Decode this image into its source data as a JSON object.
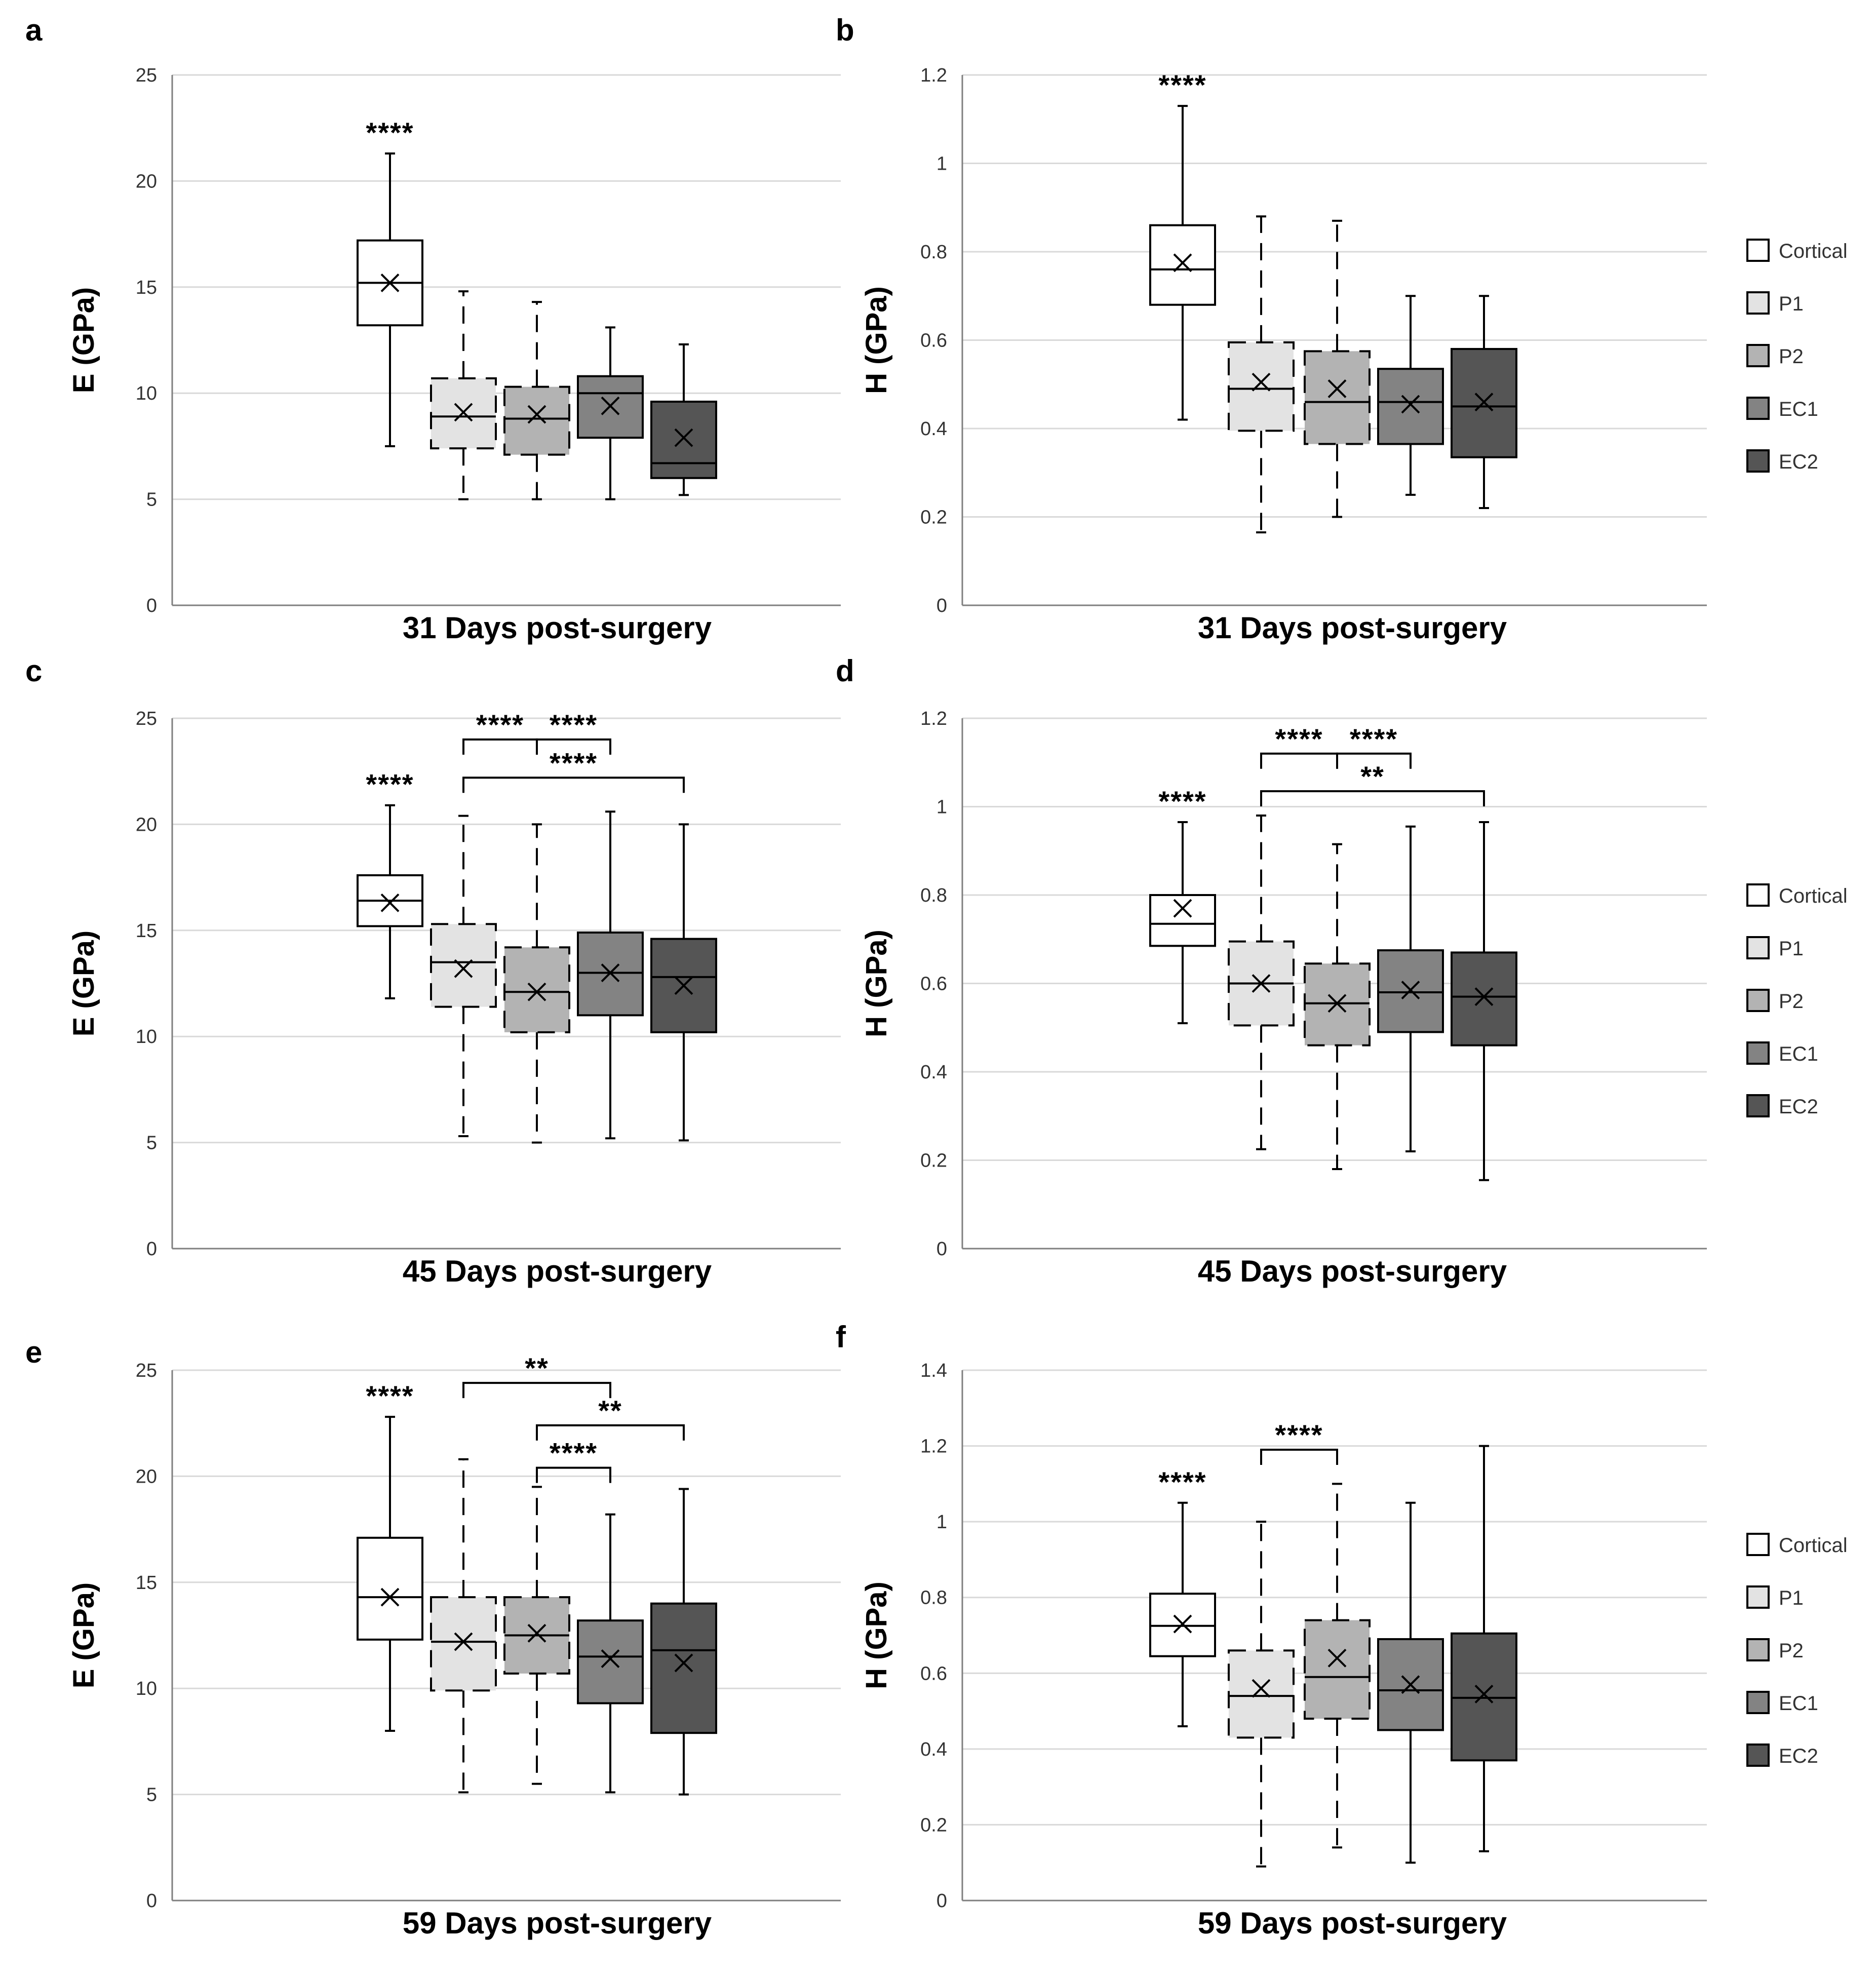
{
  "figure": {
    "legend": [
      {
        "label": "Cortical",
        "color": "#ffffff"
      },
      {
        "label": "P1",
        "color": "#e3e3e3"
      },
      {
        "label": "P2",
        "color": "#b3b3b3"
      },
      {
        "label": "EC1",
        "color": "#838383"
      },
      {
        "label": "EC2",
        "color": "#555555"
      }
    ]
  },
  "chart_data": [
    {
      "panel": "a",
      "type": "box",
      "ylabel": "E (GPa)",
      "xlabel": "31 Days post-surgery",
      "ylim": [
        0,
        25
      ],
      "yticks": [
        "0",
        "5",
        "10",
        "15",
        "20",
        "25"
      ],
      "ytick_values": [
        0,
        5,
        10,
        15,
        20,
        25
      ],
      "categories": [
        "Cortical",
        "P1",
        "P2",
        "EC1",
        "EC2"
      ],
      "boxes": [
        {
          "min": 7.5,
          "q1": 13.2,
          "median": 15.2,
          "q3": 17.2,
          "max": 21.3,
          "mean": 15.2,
          "dashed": false
        },
        {
          "min": 5.0,
          "q1": 7.4,
          "median": 8.9,
          "q3": 10.7,
          "max": 14.8,
          "mean": 9.1,
          "dashed": true
        },
        {
          "min": 5.0,
          "q1": 7.1,
          "median": 8.8,
          "q3": 10.3,
          "max": 14.3,
          "mean": 9.0,
          "dashed": true
        },
        {
          "min": 5.0,
          "q1": 7.9,
          "median": 10.0,
          "q3": 10.8,
          "max": 13.1,
          "mean": 9.4,
          "dashed": false
        },
        {
          "min": 5.2,
          "q1": 6.0,
          "median": 6.7,
          "q3": 9.6,
          "max": 12.3,
          "mean": 7.9,
          "dashed": false
        }
      ],
      "box_labels": [
        {
          "box": 0,
          "text": "****"
        }
      ],
      "brackets": []
    },
    {
      "panel": "b",
      "type": "box",
      "ylabel": "H (GPa)",
      "xlabel": "31 Days post-surgery",
      "ylim": [
        0,
        1.2
      ],
      "yticks": [
        "0",
        "0.2",
        "0.4",
        "0.6",
        "0.8",
        "1",
        "1.2"
      ],
      "ytick_values": [
        0,
        0.2,
        0.4,
        0.6,
        0.8,
        1,
        1.2
      ],
      "categories": [
        "Cortical",
        "P1",
        "P2",
        "EC1",
        "EC2"
      ],
      "boxes": [
        {
          "min": 0.42,
          "q1": 0.68,
          "median": 0.76,
          "q3": 0.86,
          "max": 1.13,
          "mean": 0.775,
          "dashed": false
        },
        {
          "min": 0.165,
          "q1": 0.395,
          "median": 0.49,
          "q3": 0.595,
          "max": 0.88,
          "mean": 0.505,
          "dashed": true
        },
        {
          "min": 0.2,
          "q1": 0.365,
          "median": 0.46,
          "q3": 0.575,
          "max": 0.87,
          "mean": 0.49,
          "dashed": true
        },
        {
          "min": 0.25,
          "q1": 0.365,
          "median": 0.46,
          "q3": 0.535,
          "max": 0.7,
          "mean": 0.455,
          "dashed": false
        },
        {
          "min": 0.22,
          "q1": 0.335,
          "median": 0.45,
          "q3": 0.58,
          "max": 0.7,
          "mean": 0.46,
          "dashed": false
        }
      ],
      "box_labels": [
        {
          "box": 0,
          "text": "****"
        }
      ],
      "brackets": []
    },
    {
      "panel": "c",
      "type": "box",
      "ylabel": "E (GPa)",
      "xlabel": "45 Days post-surgery",
      "ylim": [
        0,
        25
      ],
      "yticks": [
        "0",
        "5",
        "10",
        "15",
        "20",
        "25"
      ],
      "ytick_values": [
        0,
        5,
        10,
        15,
        20,
        25
      ],
      "categories": [
        "Cortical",
        "P1",
        "P2",
        "EC1",
        "EC2"
      ],
      "boxes": [
        {
          "min": 11.8,
          "q1": 15.2,
          "median": 16.4,
          "q3": 17.6,
          "max": 20.9,
          "mean": 16.3,
          "dashed": false
        },
        {
          "min": 5.3,
          "q1": 11.4,
          "median": 13.5,
          "q3": 15.3,
          "max": 20.4,
          "mean": 13.2,
          "dashed": true
        },
        {
          "min": 5.0,
          "q1": 10.2,
          "median": 12.1,
          "q3": 14.2,
          "max": 20.0,
          "mean": 12.1,
          "dashed": true
        },
        {
          "min": 5.2,
          "q1": 11.0,
          "median": 13.0,
          "q3": 14.9,
          "max": 20.6,
          "mean": 13.0,
          "dashed": false
        },
        {
          "min": 5.1,
          "q1": 10.2,
          "median": 12.8,
          "q3": 14.6,
          "max": 20.0,
          "mean": 12.4,
          "dashed": false
        }
      ],
      "box_labels": [
        {
          "box": 0,
          "text": "****"
        }
      ],
      "brackets": [
        {
          "from": 1,
          "to": 2,
          "level": 24.0,
          "text": "****"
        },
        {
          "from": 2,
          "to": 3,
          "level": 24.0,
          "text": "****"
        },
        {
          "from": 1,
          "to": 4,
          "level": 22.2,
          "text": "****"
        }
      ]
    },
    {
      "panel": "d",
      "type": "box",
      "ylabel": "H (GPa)",
      "xlabel": "45 Days post-surgery",
      "ylim": [
        0,
        1.2
      ],
      "yticks": [
        "0",
        "0.2",
        "0.4",
        "0.6",
        "0.8",
        "1",
        "1.2"
      ],
      "ytick_values": [
        0,
        0.2,
        0.4,
        0.6,
        0.8,
        1,
        1.2
      ],
      "categories": [
        "Cortical",
        "P1",
        "P2",
        "EC1",
        "EC2"
      ],
      "boxes": [
        {
          "min": 0.51,
          "q1": 0.685,
          "median": 0.735,
          "q3": 0.8,
          "max": 0.965,
          "mean": 0.77,
          "dashed": false
        },
        {
          "min": 0.225,
          "q1": 0.505,
          "median": 0.6,
          "q3": 0.695,
          "max": 0.98,
          "mean": 0.6,
          "dashed": true
        },
        {
          "min": 0.18,
          "q1": 0.46,
          "median": 0.555,
          "q3": 0.645,
          "max": 0.915,
          "mean": 0.555,
          "dashed": true
        },
        {
          "min": 0.22,
          "q1": 0.49,
          "median": 0.58,
          "q3": 0.675,
          "max": 0.955,
          "mean": 0.585,
          "dashed": false
        },
        {
          "min": 0.155,
          "q1": 0.46,
          "median": 0.57,
          "q3": 0.67,
          "max": 0.965,
          "mean": 0.57,
          "dashed": false
        }
      ],
      "box_labels": [
        {
          "box": 0,
          "text": "****"
        }
      ],
      "brackets": [
        {
          "from": 1,
          "to": 2,
          "level": 1.12,
          "text": "****"
        },
        {
          "from": 2,
          "to": 3,
          "level": 1.12,
          "text": "****"
        },
        {
          "from": 1,
          "to": 4,
          "level": 1.035,
          "text": "**"
        }
      ]
    },
    {
      "panel": "e",
      "type": "box",
      "ylabel": "E (GPa)",
      "xlabel": "59 Days post-surgery",
      "ylim": [
        0,
        25
      ],
      "yticks": [
        "0",
        "5",
        "10",
        "15",
        "20",
        "25"
      ],
      "ytick_values": [
        0,
        5,
        10,
        15,
        20,
        25
      ],
      "categories": [
        "Cortical",
        "P1",
        "P2",
        "EC1",
        "EC2"
      ],
      "boxes": [
        {
          "min": 8.0,
          "q1": 12.3,
          "median": 14.3,
          "q3": 17.1,
          "max": 22.8,
          "mean": 14.3,
          "dashed": false
        },
        {
          "min": 5.1,
          "q1": 9.9,
          "median": 12.2,
          "q3": 14.3,
          "max": 20.8,
          "mean": 12.2,
          "dashed": true
        },
        {
          "min": 5.5,
          "q1": 10.7,
          "median": 12.5,
          "q3": 14.3,
          "max": 19.5,
          "mean": 12.6,
          "dashed": true
        },
        {
          "min": 5.1,
          "q1": 9.3,
          "median": 11.5,
          "q3": 13.2,
          "max": 18.2,
          "mean": 11.4,
          "dashed": false
        },
        {
          "min": 5.0,
          "q1": 7.9,
          "median": 11.8,
          "q3": 14.0,
          "max": 19.4,
          "mean": 11.2,
          "dashed": false
        }
      ],
      "box_labels": [
        {
          "box": 0,
          "text": "****"
        }
      ],
      "brackets": [
        {
          "from": 1,
          "to": 3,
          "level": 24.4,
          "text": "**"
        },
        {
          "from": 2,
          "to": 4,
          "level": 22.4,
          "text": "**"
        },
        {
          "from": 2,
          "to": 3,
          "level": 20.4,
          "text": "****"
        }
      ]
    },
    {
      "panel": "f",
      "type": "box",
      "ylabel": "H (GPa)",
      "xlabel": "59 Days post-surgery",
      "ylim": [
        0,
        1.4
      ],
      "yticks": [
        "0",
        "0.2",
        "0.4",
        "0.6",
        "0.8",
        "1",
        "1.2",
        "1.4"
      ],
      "ytick_values": [
        0,
        0.2,
        0.4,
        0.6,
        0.8,
        1,
        1.2,
        1.4
      ],
      "categories": [
        "Cortical",
        "P1",
        "P2",
        "EC1",
        "EC2"
      ],
      "boxes": [
        {
          "min": 0.46,
          "q1": 0.645,
          "median": 0.725,
          "q3": 0.81,
          "max": 1.05,
          "mean": 0.73,
          "dashed": false
        },
        {
          "min": 0.09,
          "q1": 0.43,
          "median": 0.54,
          "q3": 0.66,
          "max": 1.0,
          "mean": 0.56,
          "dashed": true
        },
        {
          "min": 0.14,
          "q1": 0.48,
          "median": 0.59,
          "q3": 0.74,
          "max": 1.1,
          "mean": 0.64,
          "dashed": true
        },
        {
          "min": 0.1,
          "q1": 0.45,
          "median": 0.555,
          "q3": 0.69,
          "max": 1.05,
          "mean": 0.57,
          "dashed": false
        },
        {
          "min": 0.13,
          "q1": 0.37,
          "median": 0.535,
          "q3": 0.705,
          "max": 1.2,
          "mean": 0.545,
          "dashed": false
        }
      ],
      "box_labels": [
        {
          "box": 0,
          "text": "****"
        }
      ],
      "brackets": [
        {
          "from": 1,
          "to": 2,
          "level": 1.19,
          "text": "****"
        }
      ]
    }
  ]
}
